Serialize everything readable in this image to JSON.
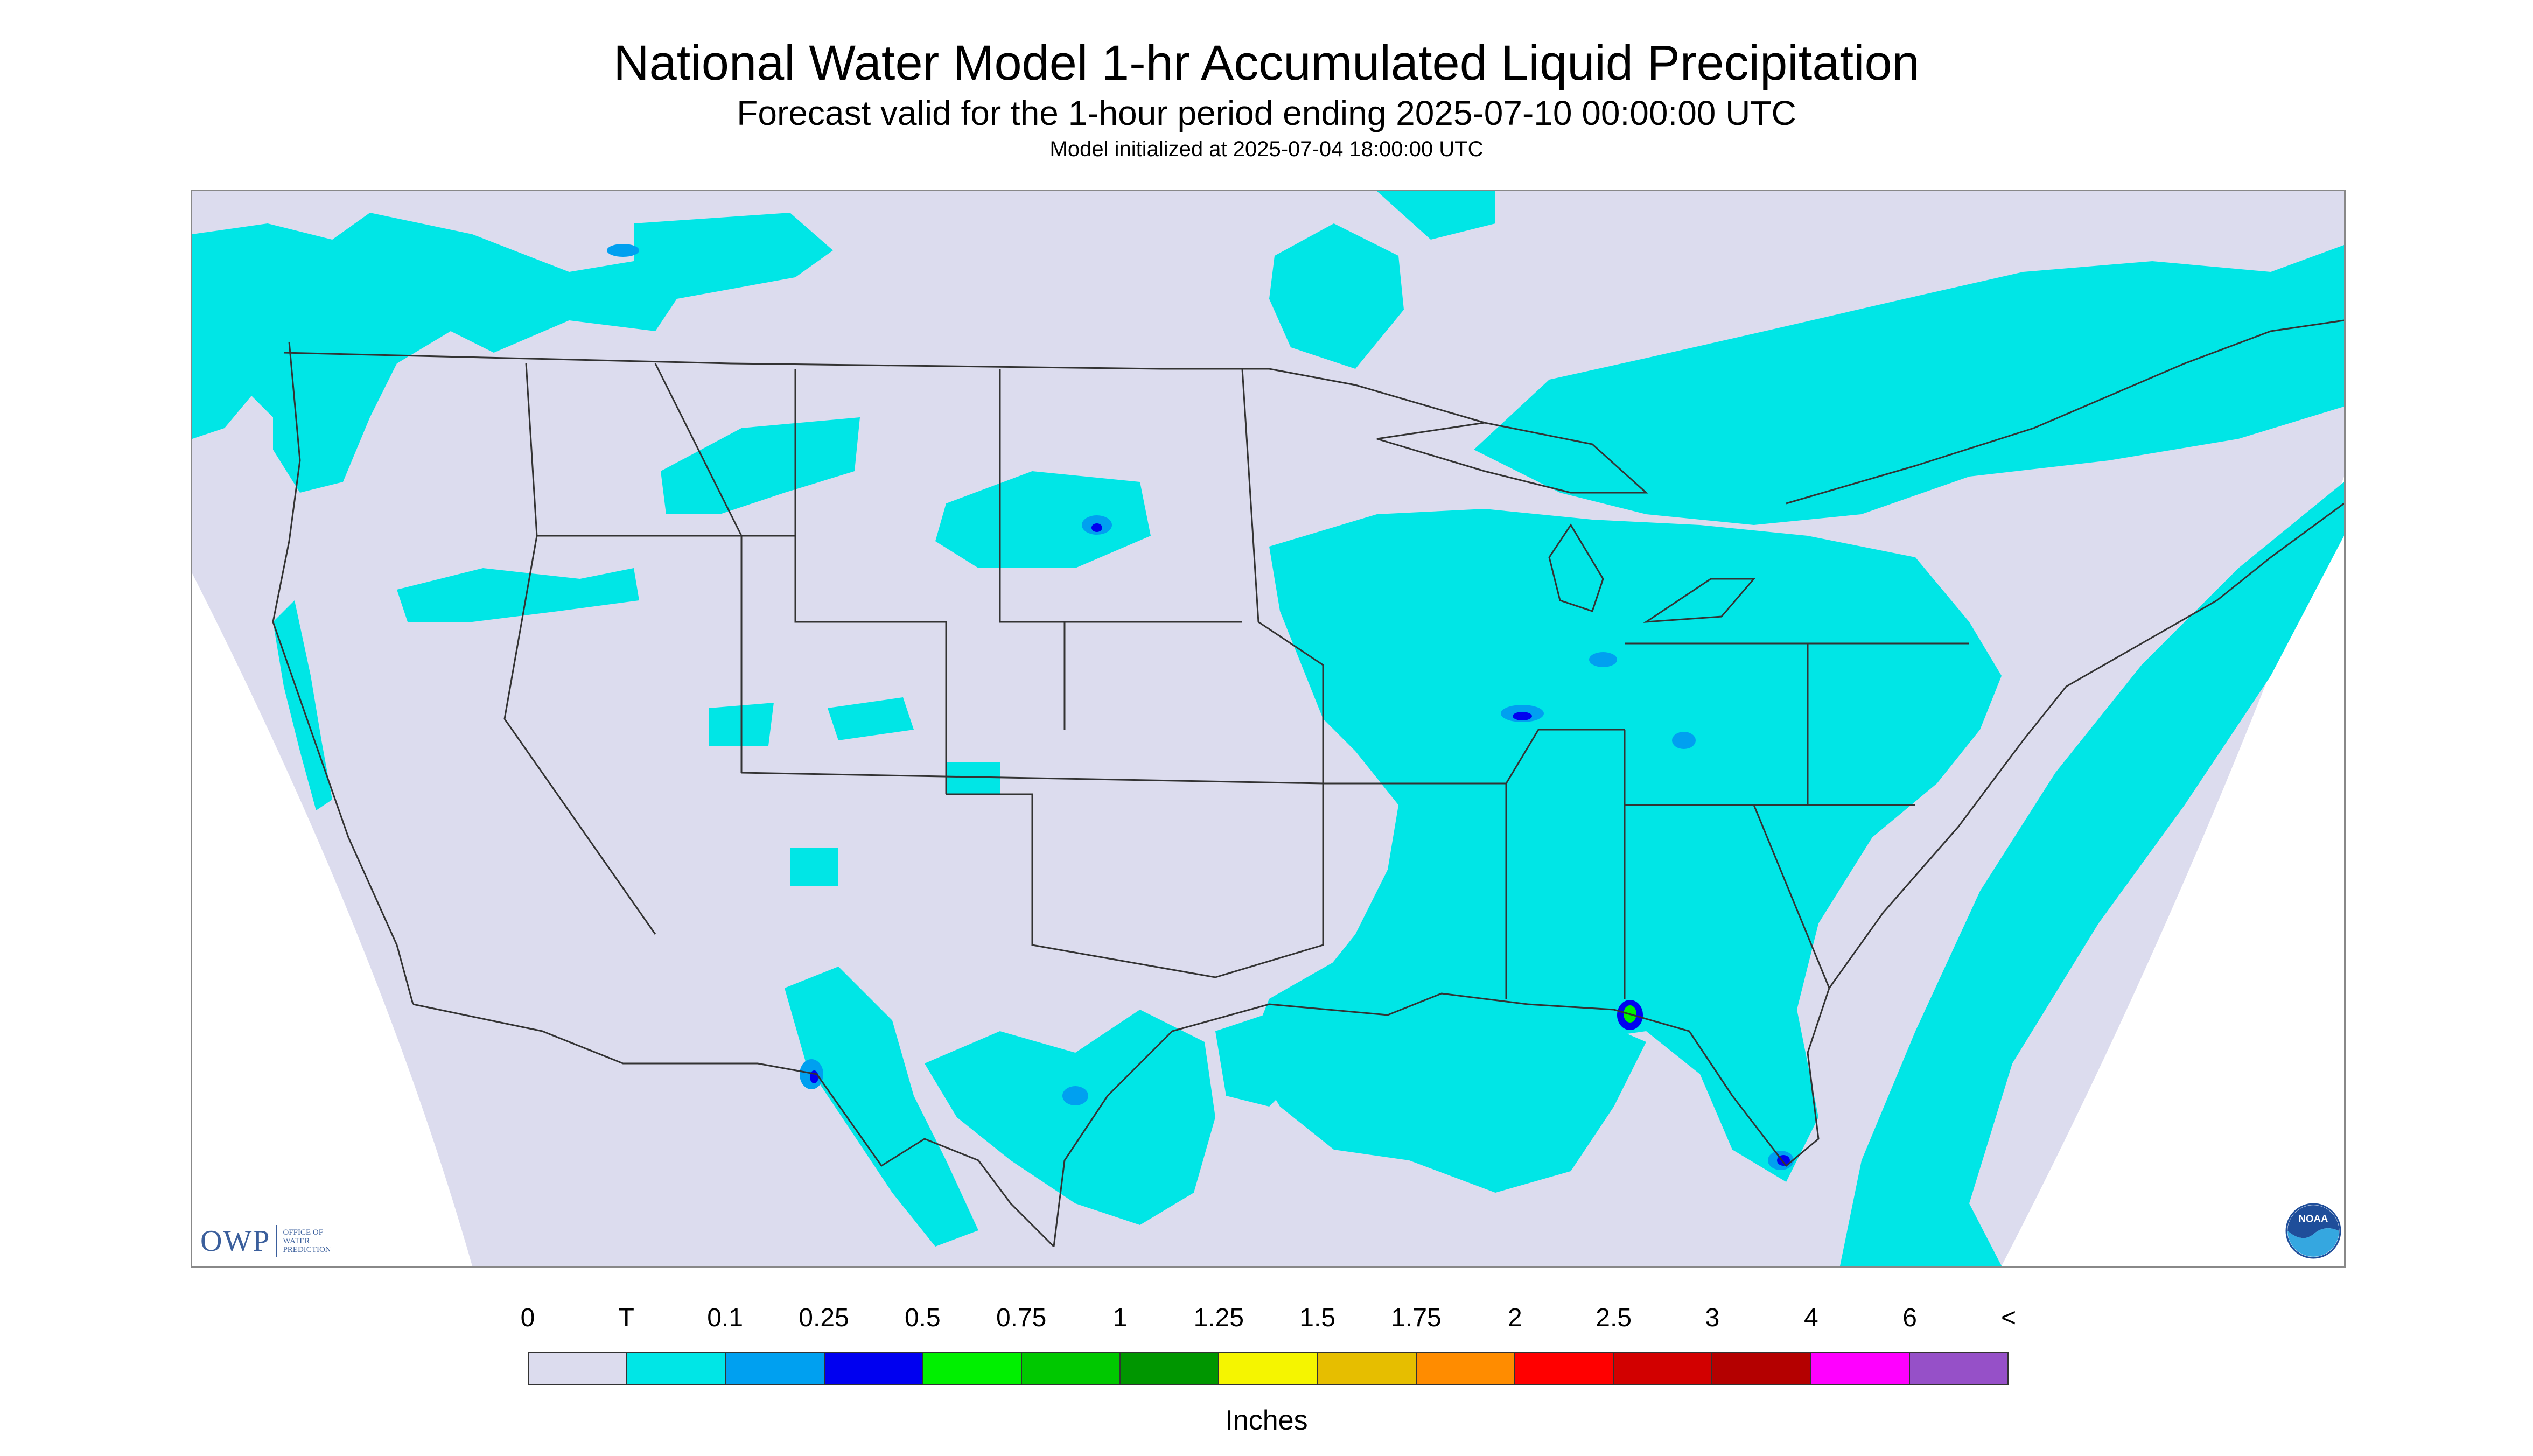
{
  "header": {
    "title": "National Water Model 1-hr Accumulated Liquid Precipitation",
    "subtitle": "Forecast valid for the 1-hour period ending 2025-07-10 00:00:00 UTC",
    "init": "Model initialized at 2025-07-04 18:00:00 UTC"
  },
  "logos": {
    "owp_letters": "OWP",
    "owp_text_lines": [
      "OFFICE OF",
      "WATER",
      "PREDICTION"
    ],
    "noaa_text": "NOAA"
  },
  "legend": {
    "labels": [
      "0",
      "T",
      "0.1",
      "0.25",
      "0.5",
      "0.75",
      "1",
      "1.25",
      "1.5",
      "1.75",
      "2",
      "2.5",
      "3",
      "4",
      "6",
      "<"
    ],
    "colors": [
      "#dcdcee",
      "#00e6e6",
      "#00a0f0",
      "#0000f0",
      "#00f000",
      "#00c800",
      "#009600",
      "#f5f500",
      "#e6be00",
      "#ff8c00",
      "#ff0000",
      "#d20000",
      "#b40000",
      "#ff00ff",
      "#9650c8"
    ],
    "units": "Inches"
  },
  "map": {
    "colors": {
      "outside": "#ffffff",
      "no_precip": "#dcdcee",
      "trace": "#00e6e6",
      "light": "#00a0f0",
      "moderate": "#0000f0",
      "heavy": "#00f000",
      "borders": "#333333"
    }
  }
}
